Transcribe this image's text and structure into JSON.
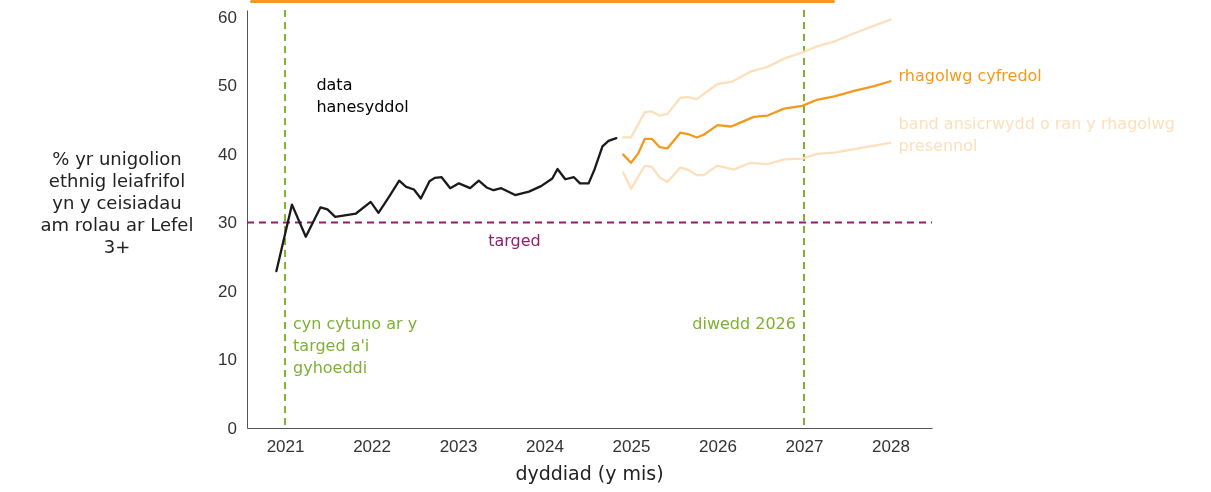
{
  "chart_data": {
    "type": "line",
    "xlabel": "dyddiad (y mis)",
    "ylabel": "% yr unigolion ethnig leiafrifol yn y ceisiadau am rolau ar Lefel 3+",
    "xlim": [
      2020.56,
      2028.48
    ],
    "xticks": [
      2021,
      2022,
      2023,
      2024,
      2025,
      2026,
      2027,
      2028
    ],
    "ylim": [
      0,
      61
    ],
    "yticks": [
      0,
      10,
      20,
      30,
      40,
      50,
      60
    ],
    "grid": false,
    "legend": false,
    "marker": "none",
    "line_style": "solid",
    "series": [
      {
        "name": "data hanesyddol",
        "color": "#1a1a1a",
        "x": [
          2020.9,
          2021.08,
          2021.24,
          2021.41,
          2021.49,
          2021.58,
          2021.82,
          2021.99,
          2022.08,
          2022.2,
          2022.32,
          2022.4,
          2022.49,
          2022.57,
          2022.67,
          2022.73,
          2022.81,
          2022.91,
          2023.01,
          2023.14,
          2023.24,
          2023.33,
          2023.41,
          2023.5,
          2023.66,
          2023.82,
          2023.96,
          2024.09,
          2024.15,
          2024.24,
          2024.34,
          2024.41,
          2024.51,
          2024.58,
          2024.67,
          2024.74,
          2024.83
        ],
        "values": [
          22.9,
          32.6,
          27.9,
          32.2,
          31.9,
          30.8,
          31.3,
          33.0,
          31.4,
          33.7,
          36.1,
          35.2,
          34.8,
          33.5,
          36.0,
          36.5,
          36.6,
          35.0,
          35.7,
          35.0,
          36.1,
          35.1,
          34.7,
          35.0,
          34.0,
          34.5,
          35.3,
          36.4,
          37.8,
          36.3,
          36.6,
          35.7,
          35.7,
          37.8,
          41.1,
          41.9,
          42.3
        ]
      },
      {
        "name": "rhagolwg cyfredol",
        "color": "#f39a1e",
        "x": [
          2024.91,
          2025.0,
          2025.08,
          2025.16,
          2025.24,
          2025.33,
          2025.42,
          2025.57,
          2025.66,
          2025.76,
          2025.84,
          2026.0,
          2026.16,
          2026.27,
          2026.42,
          2026.58,
          2026.77,
          2026.98,
          2027.15,
          2027.35,
          2027.58,
          2027.81,
          2028.0
        ],
        "values": [
          39.9,
          38.7,
          40.0,
          42.2,
          42.2,
          41.0,
          40.8,
          43.1,
          42.9,
          42.4,
          42.8,
          44.2,
          44.0,
          44.6,
          45.4,
          45.6,
          46.6,
          47.0,
          47.9,
          48.4,
          49.2,
          49.9,
          50.6
        ]
      },
      {
        "color": "#fde0bb",
        "x": [
          2024.91,
          2025.0,
          2025.16,
          2025.24,
          2025.33,
          2025.42,
          2025.57,
          2025.66,
          2025.76,
          2026.0,
          2026.16,
          2026.38,
          2026.58,
          2026.77,
          2026.98,
          2027.15,
          2027.35,
          2027.58,
          2028.0
        ],
        "values": [
          42.4,
          42.4,
          46.1,
          46.2,
          45.6,
          45.8,
          48.2,
          48.3,
          48.0,
          50.2,
          50.5,
          52.0,
          52.7,
          53.9,
          54.8,
          55.7,
          56.4,
          57.6,
          59.6
        ]
      },
      {
        "name": "band ansicrwydd o ran y rhagolwg presennol",
        "color": "#fde0bb",
        "x": [
          2024.91,
          2025.0,
          2025.08,
          2025.16,
          2025.24,
          2025.33,
          2025.42,
          2025.57,
          2025.66,
          2025.76,
          2025.84,
          2026.0,
          2026.19,
          2026.38,
          2026.58,
          2026.77,
          2026.98,
          2027.15,
          2027.35,
          2027.58,
          2028.0
        ],
        "values": [
          37.3,
          34.9,
          36.6,
          38.3,
          38.1,
          36.6,
          35.9,
          38.0,
          37.7,
          36.9,
          36.9,
          38.3,
          37.7,
          38.7,
          38.5,
          39.2,
          39.3,
          40.0,
          40.2,
          40.7,
          41.6
        ]
      }
    ],
    "ref_lines": [
      {
        "axis": "y",
        "value": 30,
        "label": "targed",
        "color": "#8e1f6e",
        "line_style": "dashed"
      },
      {
        "axis": "x",
        "value": 2021,
        "label": "cyn cytuno ar y targed a'i gyhoeddi",
        "color": "#7fb034",
        "line_style": "dashed"
      },
      {
        "axis": "x",
        "value": 2027,
        "label": "diwedd 2026",
        "color": "#7fb034",
        "line_style": "dashed"
      }
    ]
  }
}
